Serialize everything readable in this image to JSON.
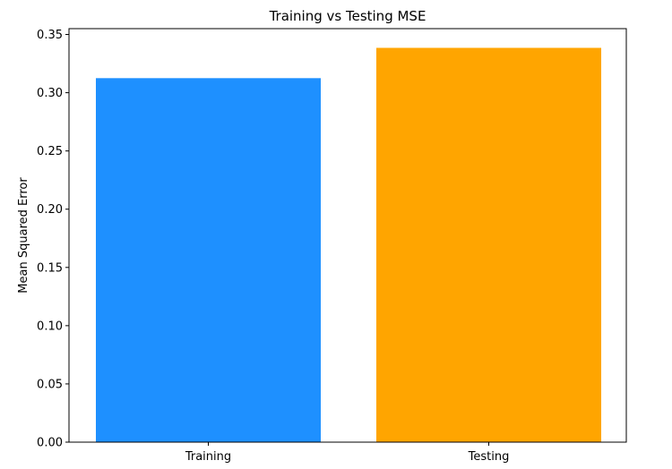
{
  "chart_data": {
    "type": "bar",
    "title": "Training vs Testing MSE",
    "xlabel": "",
    "ylabel": "Mean Squared Error",
    "categories": [
      "Training",
      "Testing"
    ],
    "values": [
      0.3125,
      0.3385
    ],
    "colors": [
      "#1e90ff",
      "#ffa500"
    ],
    "ylim": [
      0,
      0.355
    ],
    "yticks": [
      0.0,
      0.05,
      0.1,
      0.15,
      0.2,
      0.25,
      0.3,
      0.35
    ],
    "ytick_labels": [
      "0.00",
      "0.05",
      "0.10",
      "0.15",
      "0.20",
      "0.25",
      "0.30",
      "0.35"
    ],
    "grid": false,
    "legend": "none"
  }
}
